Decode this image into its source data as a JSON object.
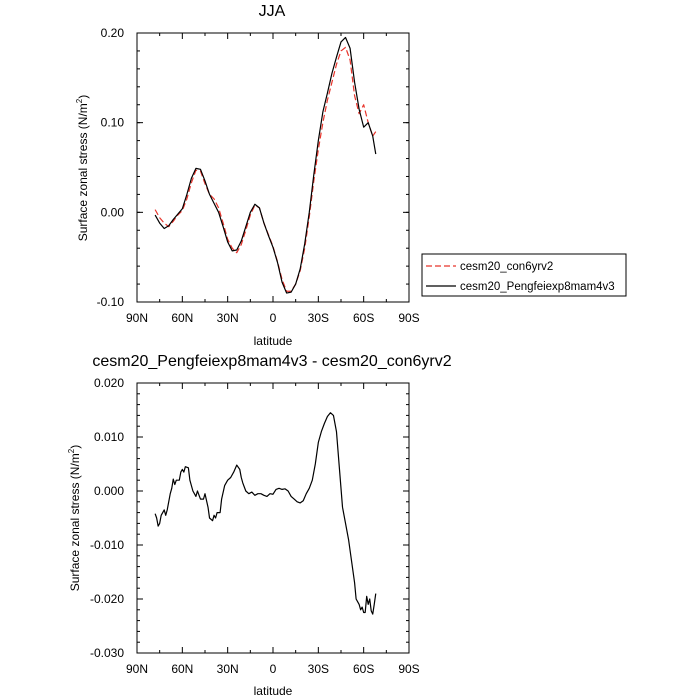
{
  "chart_data": [
    {
      "type": "line",
      "title": "JJA",
      "xlabel": "latitude",
      "ylabel": "Surface zonal stress (N/m²)",
      "ylabel_main": "Surface zonal stress (N/m",
      "ylabel_sup": "2",
      "ylabel_end": ")",
      "xlim": [
        90,
        -90
      ],
      "ylim": [
        -0.1,
        0.2
      ],
      "x_ticks": [
        90,
        60,
        30,
        0,
        -30,
        -60,
        -90
      ],
      "x_tick_labels": [
        "90N",
        "60N",
        "30N",
        "0",
        "30S",
        "60S",
        "90S"
      ],
      "y_ticks": [
        -0.1,
        0.0,
        0.1,
        0.2
      ],
      "y_tick_labels": [
        "-0.10",
        "0.00",
        "0.10",
        "0.20"
      ],
      "legend": "right",
      "series": [
        {
          "name": "cesm20_con6yrv2",
          "color": "#e8342b",
          "dash": "dashed",
          "x": [
            78,
            75,
            72,
            69,
            66,
            63,
            60,
            57,
            54,
            51,
            48,
            45,
            42,
            39,
            36,
            33,
            30,
            27,
            24,
            21,
            18,
            15,
            12,
            9,
            6,
            3,
            0,
            -3,
            -6,
            -9,
            -12,
            -15,
            -18,
            -21,
            -24,
            -27,
            -30,
            -33,
            -36,
            -39,
            -42,
            -45,
            -48,
            -51,
            -54,
            -57,
            -60,
            -63,
            -66,
            -68
          ],
          "y": [
            0.003,
            -0.006,
            -0.012,
            -0.016,
            -0.01,
            -0.003,
            0.002,
            0.015,
            0.033,
            0.047,
            0.046,
            0.032,
            0.02,
            0.015,
            0.005,
            -0.012,
            -0.03,
            -0.04,
            -0.045,
            -0.036,
            -0.02,
            -0.003,
            0.008,
            0.005,
            -0.012,
            -0.025,
            -0.038,
            -0.055,
            -0.075,
            -0.088,
            -0.088,
            -0.08,
            -0.065,
            -0.04,
            -0.005,
            0.035,
            0.07,
            0.1,
            0.125,
            0.145,
            0.165,
            0.18,
            0.184,
            0.17,
            0.13,
            0.11,
            0.12,
            0.1,
            0.085,
            0.09
          ]
        },
        {
          "name": "cesm20_Pengfeiexp8mam4v3",
          "color": "#000000",
          "dash": "solid",
          "x": [
            78,
            75,
            72,
            69,
            66,
            63,
            60,
            57,
            54,
            51,
            48,
            45,
            42,
            39,
            36,
            33,
            30,
            27,
            24,
            21,
            18,
            15,
            12,
            9,
            6,
            3,
            0,
            -3,
            -6,
            -9,
            -12,
            -15,
            -18,
            -21,
            -24,
            -27,
            -30,
            -33,
            -36,
            -39,
            -42,
            -45,
            -48,
            -51,
            -54,
            -57,
            -60,
            -63,
            -66,
            -68
          ],
          "y": [
            -0.003,
            -0.012,
            -0.018,
            -0.015,
            -0.008,
            -0.002,
            0.004,
            0.02,
            0.038,
            0.049,
            0.048,
            0.035,
            0.02,
            0.01,
            0.0,
            -0.016,
            -0.033,
            -0.043,
            -0.042,
            -0.032,
            -0.016,
            0.0,
            0.009,
            0.005,
            -0.012,
            -0.026,
            -0.039,
            -0.056,
            -0.078,
            -0.09,
            -0.089,
            -0.08,
            -0.063,
            -0.035,
            0.0,
            0.042,
            0.08,
            0.112,
            0.133,
            0.155,
            0.173,
            0.19,
            0.195,
            0.183,
            0.145,
            0.115,
            0.095,
            0.1,
            0.085,
            0.065
          ]
        }
      ]
    },
    {
      "type": "line",
      "title": "cesm20_Pengfeiexp8mam4v3 - cesm20_con6yrv2",
      "xlabel": "latitude",
      "ylabel": "Surface zonal stress (N/m²)",
      "ylabel_main": "Surface zonal stress (N/m",
      "ylabel_sup": "2",
      "ylabel_end": ")",
      "xlim": [
        90,
        -90
      ],
      "ylim": [
        -0.03,
        0.02
      ],
      "x_ticks": [
        90,
        60,
        30,
        0,
        -30,
        -60,
        -90
      ],
      "x_tick_labels": [
        "90N",
        "60N",
        "30N",
        "0",
        "30S",
        "60S",
        "90S"
      ],
      "y_ticks": [
        -0.03,
        -0.02,
        -0.01,
        0.0,
        0.01,
        0.02
      ],
      "y_tick_labels": [
        "-0.030",
        "-0.020",
        "-0.010",
        "0.000",
        "0.010",
        "0.020"
      ],
      "series": [
        {
          "color": "#000000",
          "dash": "solid",
          "x": [
            78,
            77,
            76,
            75,
            74,
            72,
            71,
            70,
            68,
            67,
            66,
            65,
            64,
            62,
            61,
            60,
            59,
            58,
            56,
            55,
            54,
            53,
            51,
            50,
            48,
            46,
            45,
            43,
            42,
            40,
            39,
            38,
            37,
            35,
            34,
            32,
            30,
            28,
            26,
            24,
            22,
            21,
            20,
            18,
            16,
            14,
            12,
            10,
            8,
            6,
            4,
            2,
            0,
            -2,
            -4,
            -6,
            -8,
            -10,
            -12,
            -14,
            -16,
            -18,
            -20,
            -22,
            -24,
            -26,
            -28,
            -30,
            -32,
            -34,
            -36,
            -38,
            -40,
            -42,
            -44,
            -46,
            -48,
            -50,
            -52,
            -54,
            -55,
            -56,
            -57,
            -58,
            -59,
            -60,
            -61,
            -62,
            -63,
            -64,
            -65,
            -66,
            -67,
            -68
          ],
          "y": [
            -0.0042,
            -0.005,
            -0.0065,
            -0.006,
            -0.0045,
            -0.0035,
            -0.0045,
            -0.0035,
            -0.0005,
            0.0005,
            0.0022,
            0.0012,
            0.002,
            0.002,
            0.0035,
            0.004,
            0.0035,
            0.0045,
            0.0043,
            0.002,
            0.001,
            0.0,
            -0.001,
            0.0,
            -0.0015,
            -0.0015,
            -0.0005,
            -0.003,
            -0.005,
            -0.0055,
            -0.0045,
            -0.005,
            -0.004,
            -0.004,
            -0.0015,
            0.001,
            0.002,
            0.0025,
            0.0035,
            0.0048,
            0.004,
            0.0025,
            0.0015,
            0.0,
            -0.0005,
            -0.0002,
            -0.0008,
            -0.0005,
            -0.0005,
            -0.0008,
            -0.001,
            -0.0005,
            -0.0006,
            0.0003,
            0.0005,
            0.0003,
            0.0004,
            0.0,
            -0.001,
            -0.0015,
            -0.002,
            -0.0022,
            -0.0018,
            -0.0005,
            0.0005,
            0.002,
            0.005,
            0.009,
            0.011,
            0.0125,
            0.0138,
            0.0145,
            0.014,
            0.011,
            0.004,
            -0.003,
            -0.006,
            -0.009,
            -0.013,
            -0.017,
            -0.02,
            -0.0205,
            -0.021,
            -0.022,
            -0.0215,
            -0.0225,
            -0.0225,
            -0.0195,
            -0.021,
            -0.02,
            -0.0222,
            -0.0228,
            -0.021,
            -0.019
          ]
        }
      ]
    }
  ]
}
